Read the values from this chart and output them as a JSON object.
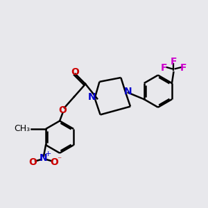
{
  "bg_color": "#e8e8ec",
  "bond_color": "#000000",
  "N_color": "#0000cc",
  "O_color": "#cc0000",
  "F_color": "#cc00cc",
  "line_width": 1.8,
  "font_size": 9.5,
  "fig_size": [
    3.0,
    3.0
  ],
  "dpi": 100,
  "xlim": [
    0,
    10
  ],
  "ylim": [
    0,
    10
  ]
}
